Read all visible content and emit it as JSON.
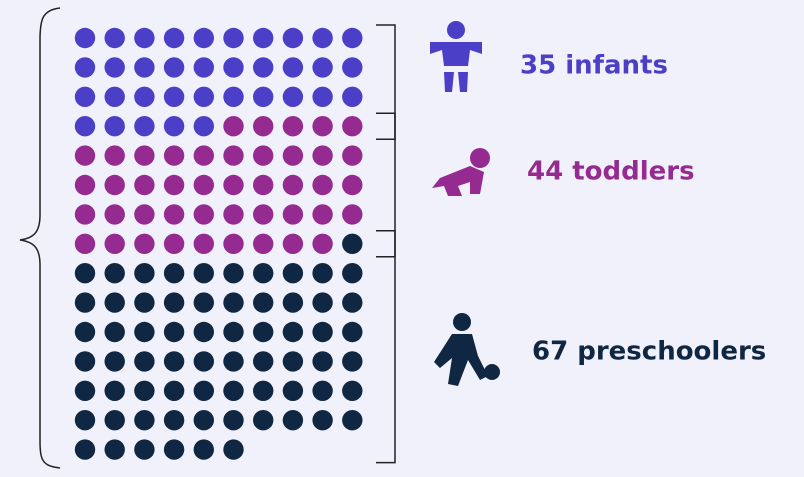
{
  "chart_data": {
    "type": "waffle",
    "values": [
      35,
      44,
      67
    ],
    "value_labels": [
      "35 infants",
      "44 toddlers",
      "67 preschoolers"
    ],
    "colors": [
      "#4a3fc6",
      "#952a90",
      "#0f2742"
    ]
  }
}
